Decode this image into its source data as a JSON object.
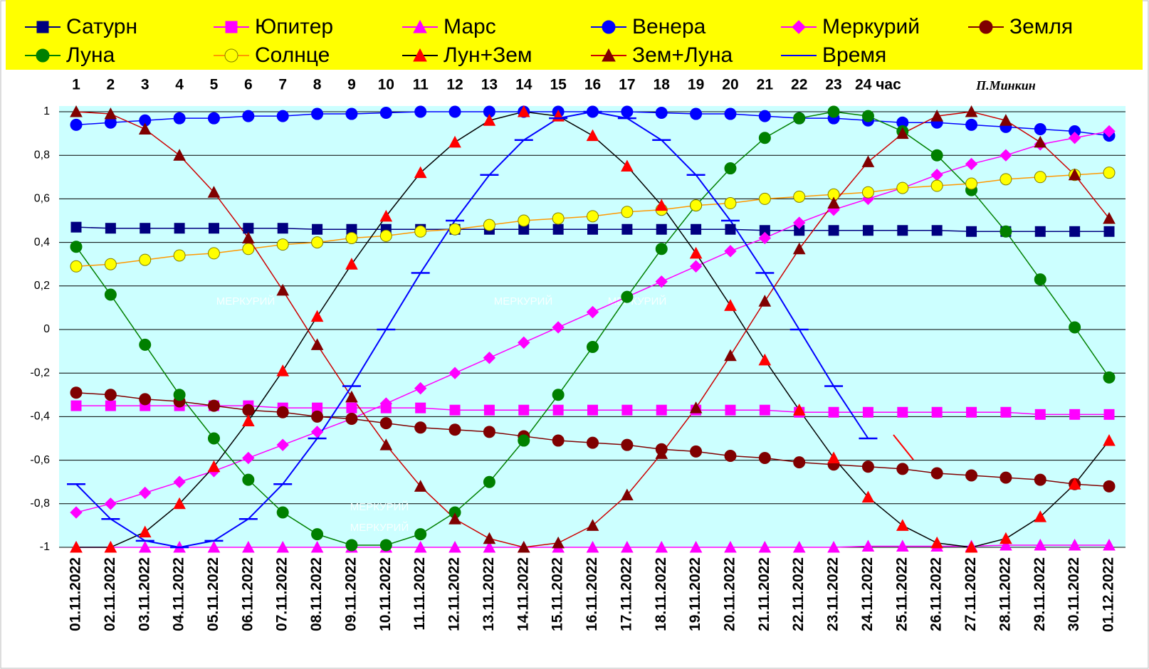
{
  "chart_data": {
    "type": "line",
    "categories": [
      "01.11.2022",
      "02.11.2022",
      "03.11.2022",
      "04.11.2022",
      "05.11.2022",
      "06.11.2022",
      "07.11.2022",
      "08.11.2022",
      "09.11.2022",
      "10.11.2022",
      "11.11.2022",
      "12.11.2022",
      "13.11.2022",
      "14.11.2022",
      "15.11.2022",
      "16.11.2022",
      "17.11.2022",
      "18.11.2022",
      "19.11.2022",
      "20.11.2022",
      "21.11.2022",
      "22.11.2022",
      "23.11.2022",
      "24.11.2022",
      "25.11.2022",
      "26.11.2022",
      "27.11.2022",
      "28.11.2022",
      "29.11.2022",
      "30.11.2022",
      "01.12.2022"
    ],
    "hours": [
      "1",
      "2",
      "3",
      "4",
      "5",
      "6",
      "7",
      "8",
      "9",
      "10",
      "11",
      "12",
      "13",
      "14",
      "15",
      "16",
      "17",
      "18",
      "19",
      "20",
      "21",
      "22",
      "23",
      "24 час"
    ],
    "author": "П.Минкин",
    "annotations": [
      "МЕРКУРИЙ",
      "МЕРКУРИЙ",
      "МЕРКУРИЙ",
      "МЕРКУРИЙ",
      "МЕРКУРИЙ"
    ],
    "ylim": [
      -1,
      1
    ],
    "yticks": [
      -1,
      {
        "value": -0.8,
        "label": "-0,8"
      },
      {
        "value": -0.6,
        "label": "-0,6"
      },
      {
        "value": -0.4,
        "label": "-0,4"
      },
      {
        "value": -0.2,
        "label": "-0,2"
      },
      0,
      {
        "value": 0.2,
        "label": "0,2"
      },
      {
        "value": 0.4,
        "label": "0,4"
      },
      {
        "value": 0.6,
        "label": "0,6"
      },
      {
        "value": 0.8,
        "label": "0,8"
      },
      1
    ],
    "grid": true,
    "background": "#ccffff",
    "legend_background": "#ffff00",
    "series": [
      {
        "name": "Сатурн",
        "color": "#000080",
        "line_color": "#000080",
        "marker": "square",
        "values": [
          0.47,
          0.465,
          0.465,
          0.465,
          0.465,
          0.465,
          0.465,
          0.46,
          0.46,
          0.46,
          0.46,
          0.46,
          0.46,
          0.46,
          0.46,
          0.46,
          0.46,
          0.46,
          0.46,
          0.46,
          0.455,
          0.455,
          0.455,
          0.455,
          0.455,
          0.455,
          0.45,
          0.45,
          0.45,
          0.45,
          0.45
        ]
      },
      {
        "name": "Юпитер",
        "color": "#ff00ff",
        "line_color": "#ff00ff",
        "marker": "square",
        "values": [
          -0.35,
          -0.35,
          -0.35,
          -0.35,
          -0.35,
          -0.35,
          -0.36,
          -0.36,
          -0.36,
          -0.36,
          -0.36,
          -0.37,
          -0.37,
          -0.37,
          -0.37,
          -0.37,
          -0.37,
          -0.37,
          -0.37,
          -0.37,
          -0.37,
          -0.38,
          -0.38,
          -0.38,
          -0.38,
          -0.38,
          -0.38,
          -0.38,
          -0.39,
          -0.39,
          -0.39
        ]
      },
      {
        "name": "Марс",
        "color": "#ff00ff",
        "line_color": "#ff00ff",
        "marker": "triangle",
        "values": [
          -1,
          -1,
          -1,
          -1,
          -1,
          -1,
          -1,
          -1,
          -1,
          -1,
          -1,
          -1,
          -1,
          -1,
          -1,
          -1,
          -1,
          -1,
          -1,
          -1,
          -1,
          -1,
          -1,
          -0.995,
          -0.995,
          -0.995,
          -0.995,
          -0.99,
          -0.99,
          -0.99,
          -0.99
        ]
      },
      {
        "name": "Венера",
        "color": "#0000ff",
        "line_color": "#0000ff",
        "marker": "circle",
        "values": [
          0.94,
          0.95,
          0.96,
          0.97,
          0.97,
          0.98,
          0.98,
          0.99,
          0.99,
          0.995,
          1,
          1,
          1,
          1,
          1,
          1,
          1,
          0.995,
          0.99,
          0.99,
          0.98,
          0.97,
          0.97,
          0.96,
          0.95,
          0.95,
          0.94,
          0.93,
          0.92,
          0.91,
          0.89
        ]
      },
      {
        "name": "Меркурий",
        "color": "#ff00ff",
        "line_color": "#ff00ff",
        "marker": "diamond",
        "values": [
          -0.84,
          -0.8,
          -0.75,
          -0.7,
          -0.65,
          -0.59,
          -0.53,
          -0.47,
          -0.41,
          -0.34,
          -0.27,
          -0.2,
          -0.13,
          -0.06,
          0.01,
          0.08,
          0.15,
          0.22,
          0.29,
          0.36,
          0.42,
          0.49,
          0.55,
          0.6,
          0.65,
          0.71,
          0.76,
          0.8,
          0.85,
          0.88,
          0.91
        ]
      },
      {
        "name": "Земля",
        "color": "#800000",
        "line_color": "#800000",
        "marker": "circle",
        "values": [
          -0.29,
          -0.3,
          -0.32,
          -0.33,
          -0.35,
          -0.37,
          -0.38,
          -0.4,
          -0.41,
          -0.43,
          -0.45,
          -0.46,
          -0.47,
          -0.49,
          -0.51,
          -0.52,
          -0.53,
          -0.55,
          -0.56,
          -0.58,
          -0.59,
          -0.61,
          -0.62,
          -0.63,
          -0.64,
          -0.66,
          -0.67,
          -0.68,
          -0.69,
          -0.71,
          -0.72
        ]
      },
      {
        "name": "Луна",
        "color": "#008000",
        "line_color": "#008000",
        "marker": "circle",
        "values": [
          0.38,
          0.16,
          -0.07,
          -0.3,
          -0.5,
          -0.69,
          -0.84,
          -0.94,
          -0.99,
          -0.99,
          -0.94,
          -0.84,
          -0.7,
          -0.51,
          -0.3,
          -0.08,
          0.15,
          0.37,
          0.57,
          0.74,
          0.88,
          0.97,
          1,
          0.98,
          0.91,
          0.8,
          0.64,
          0.45,
          0.23,
          0.01,
          -0.22
        ]
      },
      {
        "name": "Солнце",
        "color": "#ffff00",
        "line_color": "#ff9900",
        "marker": "circle",
        "values": [
          0.29,
          0.3,
          0.32,
          0.34,
          0.35,
          0.37,
          0.39,
          0.4,
          0.42,
          0.43,
          0.45,
          0.46,
          0.48,
          0.5,
          0.51,
          0.52,
          0.54,
          0.55,
          0.57,
          0.58,
          0.6,
          0.61,
          0.62,
          0.63,
          0.65,
          0.66,
          0.67,
          0.69,
          0.7,
          0.71,
          0.72
        ]
      },
      {
        "name": "Лун+Зем",
        "color": "#ff0000",
        "line_color": "#000000",
        "marker": "triangle",
        "values": [
          -1,
          -1,
          -0.93,
          -0.8,
          -0.63,
          -0.42,
          -0.19,
          0.06,
          0.3,
          0.52,
          0.72,
          0.86,
          0.96,
          1,
          0.98,
          0.89,
          0.75,
          0.57,
          0.35,
          0.11,
          -0.14,
          -0.37,
          -0.59,
          -0.77,
          -0.9,
          -0.98,
          -1,
          -0.96,
          -0.86,
          -0.71,
          -0.51
        ]
      },
      {
        "name": "Зем+Луна",
        "color": "#800000",
        "line_color": "#cc0000",
        "marker": "triangle",
        "values": [
          1,
          0.99,
          0.92,
          0.8,
          0.63,
          0.42,
          0.18,
          -0.07,
          -0.31,
          -0.53,
          -0.72,
          -0.87,
          -0.96,
          -1,
          -0.98,
          -0.9,
          -0.76,
          -0.57,
          -0.36,
          -0.12,
          0.13,
          0.37,
          0.58,
          0.77,
          0.9,
          0.98,
          1,
          0.96,
          0.86,
          0.71,
          0.51
        ]
      },
      {
        "name": "Время",
        "color": "#0000ff",
        "line_color": "#0000ff",
        "marker": "dash",
        "values": [
          -0.71,
          -0.87,
          -0.97,
          -1,
          -0.97,
          -0.87,
          -0.71,
          -0.5,
          -0.26,
          0,
          0.26,
          0.5,
          0.71,
          0.87,
          0.97,
          1,
          0.97,
          0.87,
          0.71,
          0.5,
          0.26,
          0,
          -0.26,
          -0.5,
          null,
          null,
          null,
          null,
          null,
          null,
          null
        ]
      }
    ]
  }
}
